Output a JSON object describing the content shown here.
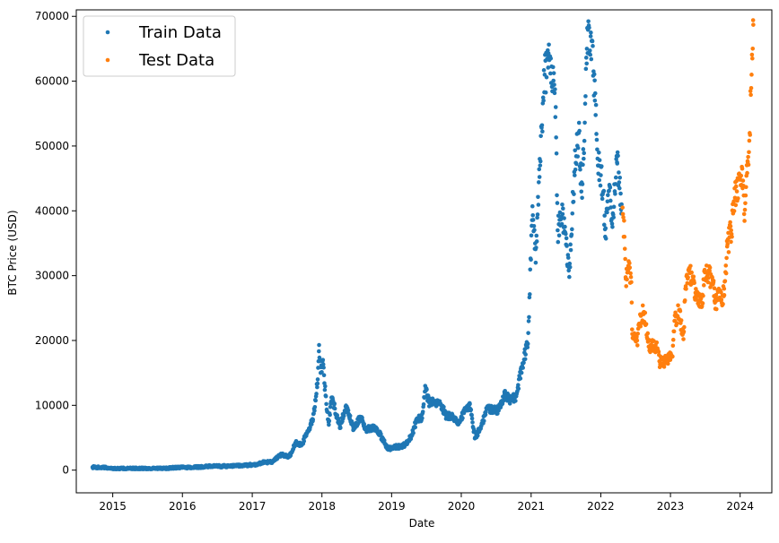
{
  "chart_data": {
    "type": "scatter",
    "xlabel": "Date",
    "ylabel": "BTC Price (USD)",
    "xlim": [
      "2014-06-24",
      "2024-06-15"
    ],
    "ylim": [
      -3500,
      71000
    ],
    "xticks": [
      "2015",
      "2016",
      "2017",
      "2018",
      "2019",
      "2020",
      "2021",
      "2022",
      "2023",
      "2024"
    ],
    "yticks": [
      0,
      10000,
      20000,
      30000,
      40000,
      50000,
      60000,
      70000
    ],
    "legend": {
      "placement": "top-left"
    },
    "series": [
      {
        "name": "Train Data",
        "color": "#1f77b4",
        "points": [
          [
            "2014-09-17",
            460
          ],
          [
            "2014-12-01",
            370
          ],
          [
            "2015-01-15",
            210
          ],
          [
            "2015-04-01",
            245
          ],
          [
            "2015-07-01",
            260
          ],
          [
            "2015-10-01",
            240
          ],
          [
            "2015-12-01",
            400
          ],
          [
            "2016-03-01",
            430
          ],
          [
            "2016-06-01",
            600
          ],
          [
            "2016-09-01",
            610
          ],
          [
            "2016-12-01",
            760
          ],
          [
            "2017-01-15",
            850
          ],
          [
            "2017-03-01",
            1200
          ],
          [
            "2017-04-15",
            1250
          ],
          [
            "2017-06-01",
            2400
          ],
          [
            "2017-07-15",
            2100
          ],
          [
            "2017-08-15",
            4200
          ],
          [
            "2017-09-15",
            3800
          ],
          [
            "2017-10-15",
            5700
          ],
          [
            "2017-11-15",
            7800
          ],
          [
            "2017-12-10",
            14000
          ],
          [
            "2017-12-17",
            19300
          ],
          [
            "2017-12-25",
            15000
          ],
          [
            "2018-01-06",
            17000
          ],
          [
            "2018-01-20",
            11500
          ],
          [
            "2018-02-06",
            7000
          ],
          [
            "2018-02-20",
            11200
          ],
          [
            "2018-03-10",
            9500
          ],
          [
            "2018-04-06",
            6700
          ],
          [
            "2018-05-05",
            9800
          ],
          [
            "2018-06-15",
            6500
          ],
          [
            "2018-07-25",
            8200
          ],
          [
            "2018-08-15",
            6300
          ],
          [
            "2018-09-15",
            6500
          ],
          [
            "2018-10-15",
            6450
          ],
          [
            "2018-11-20",
            4400
          ],
          [
            "2018-12-15",
            3300
          ],
          [
            "2019-01-15",
            3600
          ],
          [
            "2019-02-15",
            3600
          ],
          [
            "2019-03-15",
            4000
          ],
          [
            "2019-04-15",
            5200
          ],
          [
            "2019-05-15",
            8000
          ],
          [
            "2019-06-10",
            8000
          ],
          [
            "2019-06-26",
            13000
          ],
          [
            "2019-07-15",
            10500
          ],
          [
            "2019-08-15",
            10300
          ],
          [
            "2019-09-15",
            10200
          ],
          [
            "2019-10-15",
            8300
          ],
          [
            "2019-11-15",
            8500
          ],
          [
            "2019-12-15",
            7100
          ],
          [
            "2020-01-15",
            8800
          ],
          [
            "2020-02-15",
            10200
          ],
          [
            "2020-03-13",
            5000
          ],
          [
            "2020-04-15",
            6800
          ],
          [
            "2020-05-15",
            9500
          ],
          [
            "2020-06-15",
            9400
          ],
          [
            "2020-07-15",
            9200
          ],
          [
            "2020-08-15",
            11800
          ],
          [
            "2020-09-15",
            10700
          ],
          [
            "2020-10-15",
            11400
          ],
          [
            "2020-11-15",
            16000
          ],
          [
            "2020-12-15",
            19500
          ],
          [
            "2021-01-08",
            40700
          ],
          [
            "2021-01-25",
            32000
          ],
          [
            "2021-02-15",
            48000
          ],
          [
            "2021-03-13",
            61000
          ],
          [
            "2021-04-14",
            63500
          ],
          [
            "2021-05-10",
            56000
          ],
          [
            "2021-05-20",
            37000
          ],
          [
            "2021-06-15",
            39500
          ],
          [
            "2021-07-20",
            29800
          ],
          [
            "2021-08-15",
            46000
          ],
          [
            "2021-09-07",
            52000
          ],
          [
            "2021-09-25",
            42000
          ],
          [
            "2021-10-20",
            65000
          ],
          [
            "2021-11-10",
            67500
          ],
          [
            "2021-12-01",
            57000
          ],
          [
            "2021-12-20",
            47000
          ],
          [
            "2022-01-15",
            43000
          ],
          [
            "2022-01-24",
            36000
          ],
          [
            "2022-02-15",
            44000
          ],
          [
            "2022-03-01",
            38000
          ],
          [
            "2022-03-28",
            47300
          ],
          [
            "2022-04-20",
            41000
          ]
        ]
      },
      {
        "name": "Test Data",
        "color": "#ff7f0e",
        "points": [
          [
            "2022-04-25",
            40500
          ],
          [
            "2022-05-05",
            36000
          ],
          [
            "2022-05-12",
            29500
          ],
          [
            "2022-05-25",
            31500
          ],
          [
            "2022-06-10",
            29000
          ],
          [
            "2022-06-15",
            21000
          ],
          [
            "2022-06-20",
            20500
          ],
          [
            "2022-07-10",
            20000
          ],
          [
            "2022-07-30",
            23800
          ],
          [
            "2022-08-15",
            24400
          ],
          [
            "2022-09-05",
            19800
          ],
          [
            "2022-09-20",
            19000
          ],
          [
            "2022-10-15",
            19300
          ],
          [
            "2022-11-09",
            16500
          ],
          [
            "2022-12-15",
            16800
          ],
          [
            "2023-01-10",
            17500
          ],
          [
            "2023-01-25",
            23000
          ],
          [
            "2023-02-15",
            24700
          ],
          [
            "2023-03-10",
            20200
          ],
          [
            "2023-03-20",
            28000
          ],
          [
            "2023-04-14",
            30400
          ],
          [
            "2023-05-15",
            27000
          ],
          [
            "2023-06-15",
            25300
          ],
          [
            "2023-07-01",
            30500
          ],
          [
            "2023-07-15",
            30300
          ],
          [
            "2023-08-15",
            29200
          ],
          [
            "2023-08-20",
            26100
          ],
          [
            "2023-09-15",
            26600
          ],
          [
            "2023-10-10",
            27000
          ],
          [
            "2023-10-25",
            34500
          ],
          [
            "2023-11-15",
            37000
          ],
          [
            "2023-12-05",
            42000
          ],
          [
            "2023-12-15",
            43000
          ],
          [
            "2024-01-12",
            46500
          ],
          [
            "2024-01-22",
            39500
          ],
          [
            "2024-02-10",
            47500
          ],
          [
            "2024-02-20",
            52000
          ],
          [
            "2024-03-01",
            61000
          ],
          [
            "2024-03-05",
            63500
          ],
          [
            "2024-03-10",
            68700
          ]
        ]
      }
    ]
  }
}
